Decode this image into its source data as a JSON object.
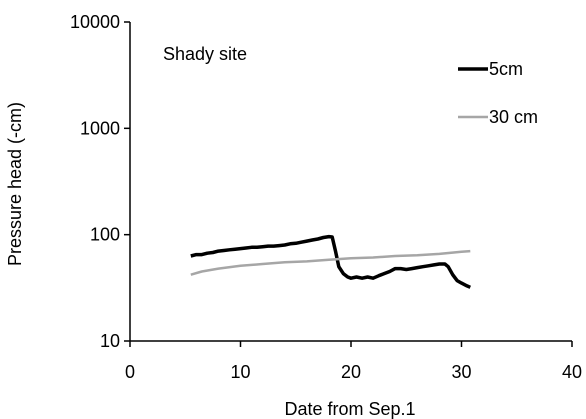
{
  "chart_data": {
    "type": "line",
    "title": "",
    "annotation": "Shady site",
    "xlabel": "Date from Sep.1",
    "ylabel": "Pressure head (-cm)",
    "xlim": [
      0,
      40
    ],
    "ylim": [
      10,
      10000
    ],
    "yscale": "log",
    "x_ticks": [
      0,
      10,
      20,
      30,
      40
    ],
    "y_ticks": [
      10,
      100,
      1000,
      10000
    ],
    "grid": false,
    "legend_position": "top-right",
    "series": [
      {
        "name": "5cm",
        "color": "#000000",
        "line_width": "thick",
        "points": [
          [
            5.5,
            63
          ],
          [
            6.0,
            65
          ],
          [
            6.5,
            65
          ],
          [
            7.0,
            67
          ],
          [
            7.5,
            68
          ],
          [
            8.0,
            70
          ],
          [
            8.5,
            71
          ],
          [
            9.0,
            72
          ],
          [
            9.5,
            73
          ],
          [
            10.0,
            74
          ],
          [
            10.5,
            75
          ],
          [
            11.0,
            76
          ],
          [
            11.5,
            76
          ],
          [
            12.0,
            77
          ],
          [
            12.5,
            78
          ],
          [
            13.0,
            78
          ],
          [
            13.5,
            79
          ],
          [
            14.0,
            80
          ],
          [
            14.5,
            82
          ],
          [
            15.0,
            83
          ],
          [
            15.5,
            85
          ],
          [
            16.0,
            87
          ],
          [
            16.5,
            89
          ],
          [
            17.0,
            91
          ],
          [
            17.5,
            94
          ],
          [
            18.0,
            96
          ],
          [
            18.3,
            95
          ],
          [
            18.6,
            70
          ],
          [
            18.9,
            50
          ],
          [
            19.3,
            43
          ],
          [
            19.7,
            40
          ],
          [
            20.0,
            39
          ],
          [
            20.5,
            40
          ],
          [
            21.0,
            39
          ],
          [
            21.5,
            40
          ],
          [
            22.0,
            39
          ],
          [
            22.5,
            41
          ],
          [
            23.0,
            43
          ],
          [
            23.5,
            45
          ],
          [
            24.0,
            48
          ],
          [
            24.5,
            48
          ],
          [
            25.0,
            47
          ],
          [
            25.5,
            48
          ],
          [
            26.0,
            49
          ],
          [
            26.5,
            50
          ],
          [
            27.0,
            51
          ],
          [
            27.5,
            52
          ],
          [
            28.0,
            53
          ],
          [
            28.5,
            53
          ],
          [
            28.8,
            50
          ],
          [
            29.2,
            42
          ],
          [
            29.6,
            37
          ],
          [
            30.0,
            35
          ],
          [
            30.5,
            33
          ],
          [
            30.8,
            32
          ]
        ]
      },
      {
        "name": "30 cm",
        "color": "#a6a6a6",
        "line_width": "medium",
        "points": [
          [
            5.5,
            42
          ],
          [
            6.5,
            45
          ],
          [
            8.0,
            48
          ],
          [
            10.0,
            51
          ],
          [
            12.0,
            53
          ],
          [
            14.0,
            55
          ],
          [
            16.0,
            56
          ],
          [
            18.0,
            58
          ],
          [
            20.0,
            60
          ],
          [
            22.0,
            61
          ],
          [
            24.0,
            63
          ],
          [
            26.0,
            64
          ],
          [
            28.0,
            66
          ],
          [
            30.0,
            69
          ],
          [
            30.8,
            70
          ]
        ]
      }
    ]
  }
}
